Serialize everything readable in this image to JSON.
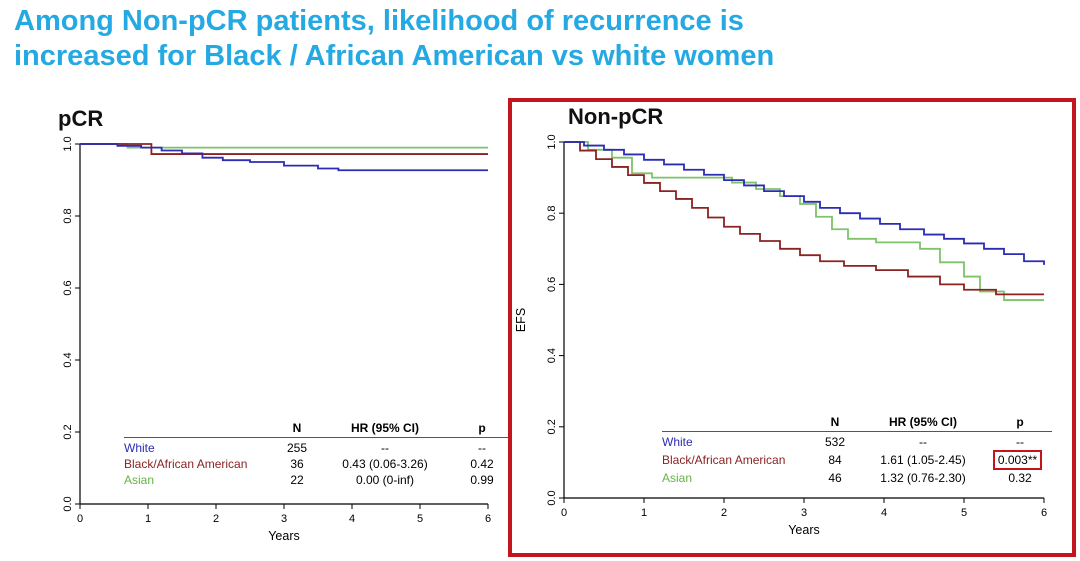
{
  "title": {
    "line1": "Among Non-pCR patients, likelihood of recurrence is",
    "line2": "increased for Black / African American vs white women"
  },
  "colors": {
    "title_accent": "#25a9e2",
    "highlight_red": "#c3161c",
    "white_series": "#2b2bb4",
    "black_series": "#8b2222",
    "asian_series": "#7ec36a"
  },
  "panels": [
    {
      "heading": "pCR",
      "table": {
        "headers": [
          "N",
          "HR (95% CI)",
          "p"
        ],
        "rows": [
          {
            "label": "White",
            "n": "255",
            "hr": "--",
            "p": "--"
          },
          {
            "label": "Black/African American",
            "n": "36",
            "hr": "0.43 (0.06-3.26)",
            "p": "0.42"
          },
          {
            "label": "Asian",
            "n": "22",
            "hr": "0.00 (0-inf)",
            "p": "0.99"
          }
        ]
      }
    },
    {
      "heading": "Non-pCR",
      "table": {
        "headers": [
          "N",
          "HR (95% CI)",
          "p"
        ],
        "rows": [
          {
            "label": "White",
            "n": "532",
            "hr": "--",
            "p": "--"
          },
          {
            "label": "Black/African American",
            "n": "84",
            "hr": "1.61 (1.05-2.45)",
            "p": "0.003**",
            "p_highlighted": true
          },
          {
            "label": "Asian",
            "n": "46",
            "hr": "1.32 (0.76-2.30)",
            "p": "0.32"
          }
        ]
      }
    }
  ],
  "chart_data": [
    {
      "type": "line",
      "subtype": "kaplan-meier-step",
      "title": "pCR",
      "xlabel": "Years",
      "ylabel": "",
      "xlim": [
        0,
        6
      ],
      "ylim": [
        0,
        1.0
      ],
      "xticks": [
        0,
        1,
        2,
        3,
        4,
        5,
        6
      ],
      "yticks": [
        0,
        0.2,
        0.4,
        0.6,
        0.8,
        1.0
      ],
      "grid": false,
      "legend_position": "inside-bottom-table",
      "series": [
        {
          "name": "White",
          "color": "#2b2bb4",
          "points": [
            [
              0,
              1.0
            ],
            [
              0.55,
              0.995
            ],
            [
              0.9,
              0.99
            ],
            [
              1.2,
              0.982
            ],
            [
              1.5,
              0.974
            ],
            [
              1.8,
              0.962
            ],
            [
              2.1,
              0.955
            ],
            [
              2.5,
              0.95
            ],
            [
              3.0,
              0.94
            ],
            [
              3.5,
              0.932
            ],
            [
              3.8,
              0.927
            ],
            [
              6,
              0.927
            ]
          ]
        },
        {
          "name": "Black/African American",
          "color": "#8b2222",
          "points": [
            [
              0,
              1.0
            ],
            [
              1.05,
              0.972
            ],
            [
              6,
              0.972
            ]
          ]
        },
        {
          "name": "Asian",
          "color": "#7ec36a",
          "points": [
            [
              0,
              1.0
            ],
            [
              0.7,
              0.99
            ],
            [
              6,
              0.99
            ]
          ]
        }
      ]
    },
    {
      "type": "line",
      "subtype": "kaplan-meier-step",
      "title": "Non-pCR",
      "xlabel": "Years",
      "ylabel": "EFS",
      "xlim": [
        0,
        6
      ],
      "ylim": [
        0,
        1.0
      ],
      "xticks": [
        0,
        1,
        2,
        3,
        4,
        5,
        6
      ],
      "yticks": [
        0,
        0.2,
        0.4,
        0.6,
        0.8,
        1.0
      ],
      "grid": false,
      "legend_position": "inside-bottom-table",
      "series": [
        {
          "name": "White",
          "color": "#2b2bb4",
          "points": [
            [
              0,
              1
            ],
            [
              0.25,
              0.99
            ],
            [
              0.5,
              0.978
            ],
            [
              0.75,
              0.965
            ],
            [
              1.0,
              0.95
            ],
            [
              1.25,
              0.937
            ],
            [
              1.5,
              0.922
            ],
            [
              1.75,
              0.908
            ],
            [
              2.0,
              0.893
            ],
            [
              2.25,
              0.878
            ],
            [
              2.5,
              0.862
            ],
            [
              2.75,
              0.848
            ],
            [
              3.0,
              0.832
            ],
            [
              3.2,
              0.815
            ],
            [
              3.45,
              0.8
            ],
            [
              3.7,
              0.785
            ],
            [
              3.95,
              0.77
            ],
            [
              4.2,
              0.755
            ],
            [
              4.5,
              0.74
            ],
            [
              4.75,
              0.728
            ],
            [
              5.0,
              0.715
            ],
            [
              5.25,
              0.7
            ],
            [
              5.5,
              0.685
            ],
            [
              5.75,
              0.665
            ],
            [
              6,
              0.655
            ]
          ]
        },
        {
          "name": "Black/African American",
          "color": "#8b2222",
          "points": [
            [
              0,
              1
            ],
            [
              0.2,
              0.976
            ],
            [
              0.4,
              0.952
            ],
            [
              0.6,
              0.93
            ],
            [
              0.8,
              0.907
            ],
            [
              1.0,
              0.885
            ],
            [
              1.2,
              0.862
            ],
            [
              1.4,
              0.84
            ],
            [
              1.6,
              0.815
            ],
            [
              1.8,
              0.788
            ],
            [
              2.0,
              0.762
            ],
            [
              2.2,
              0.742
            ],
            [
              2.45,
              0.722
            ],
            [
              2.7,
              0.7
            ],
            [
              2.95,
              0.682
            ],
            [
              3.2,
              0.665
            ],
            [
              3.5,
              0.652
            ],
            [
              3.9,
              0.64
            ],
            [
              4.3,
              0.622
            ],
            [
              4.7,
              0.6
            ],
            [
              5.0,
              0.585
            ],
            [
              5.4,
              0.572
            ],
            [
              6,
              0.572
            ]
          ]
        },
        {
          "name": "Asian",
          "color": "#7ec36a",
          "points": [
            [
              0,
              1
            ],
            [
              0.3,
              0.978
            ],
            [
              0.6,
              0.956
            ],
            [
              0.85,
              0.912
            ],
            [
              1.1,
              0.9
            ],
            [
              2.1,
              0.886
            ],
            [
              2.4,
              0.868
            ],
            [
              2.7,
              0.848
            ],
            [
              2.95,
              0.826
            ],
            [
              3.15,
              0.79
            ],
            [
              3.35,
              0.755
            ],
            [
              3.55,
              0.728
            ],
            [
              3.9,
              0.718
            ],
            [
              4.45,
              0.7
            ],
            [
              4.7,
              0.662
            ],
            [
              5.0,
              0.622
            ],
            [
              5.2,
              0.58
            ],
            [
              5.5,
              0.556
            ],
            [
              6,
              0.556
            ]
          ]
        }
      ]
    }
  ]
}
